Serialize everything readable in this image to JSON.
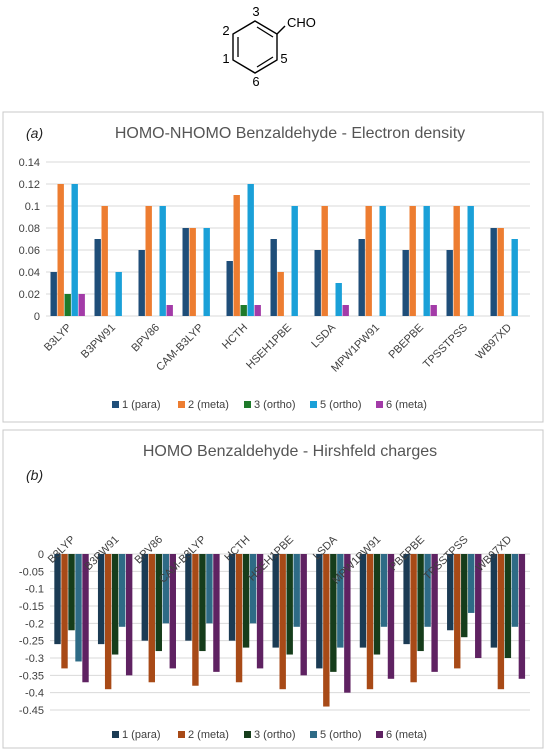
{
  "molecule": {
    "labels": {
      "pos3": "3",
      "pos2": "2",
      "pos1": "1",
      "pos5": "5",
      "pos6": "6",
      "cho": "CHO"
    }
  },
  "colors": {
    "s1": "#1f4e79",
    "s2": "#ed7d31",
    "s3": "#1e7a2a",
    "s5": "#1aa0d8",
    "s6": "#a33ba8",
    "b_s1": "#1b3b54",
    "b_s2": "#a84a17",
    "b_s3": "#163d1b",
    "b_s5": "#2e6b86",
    "b_s6": "#5f2262"
  },
  "chart_data": [
    {
      "type": "bar",
      "panel": "(a)",
      "title": "HOMO-NHOMO Benzaldehyde - Electron density",
      "categories": [
        "B3LYP",
        "B3PW91",
        "BPV86",
        "CAM-B3LYP",
        "HCTH",
        "HSEH1PBE",
        "LSDA",
        "MPW1PW91",
        "PBEPBE",
        "TPSSTPSS",
        "WB97XD"
      ],
      "ylim": [
        0,
        0.14
      ],
      "yticks": [
        "0",
        "0.02",
        "0.04",
        "0.06",
        "0.08",
        "0.1",
        "0.12",
        "0.14"
      ],
      "grid": true,
      "legend_position": "bottom",
      "series": [
        {
          "name": "1 (para)",
          "values": [
            0.04,
            0.07,
            0.06,
            0.08,
            0.05,
            0.07,
            0.06,
            0.07,
            0.06,
            0.06,
            0.08
          ]
        },
        {
          "name": "2 (meta)",
          "values": [
            0.12,
            0.1,
            0.1,
            0.08,
            0.11,
            0.04,
            0.1,
            0.1,
            0.1,
            0.1,
            0.08
          ]
        },
        {
          "name": "3 (ortho)",
          "values": [
            0.02,
            0,
            0,
            0,
            0.01,
            0,
            0,
            0,
            0,
            0,
            0
          ]
        },
        {
          "name": "5 (ortho)",
          "values": [
            0.12,
            0.04,
            0.1,
            0.08,
            0.12,
            0.1,
            0.03,
            0.1,
            0.1,
            0.1,
            0.07
          ]
        },
        {
          "name": "6 (meta)",
          "values": [
            0.02,
            0,
            0.01,
            0,
            0.01,
            0,
            0.01,
            0,
            0.01,
            0,
            0
          ]
        }
      ]
    },
    {
      "type": "bar",
      "panel": "(b)",
      "title": "HOMO Benzaldehyde - Hirshfeld charges",
      "categories": [
        "B3LYP",
        "B3PW91",
        "BPV86",
        "CAM-B3LYP",
        "HCTH",
        "HSEH1PBE",
        "LSDA",
        "MPW1PW91",
        "PBEPBE",
        "TPSSTPSS",
        "WB97XD"
      ],
      "ylim": [
        -0.45,
        0
      ],
      "yticks": [
        "0",
        "-0.05",
        "-0.1",
        "-0.15",
        "-0.2",
        "-0.25",
        "-0.3",
        "-0.35",
        "-0.4",
        "-0.45"
      ],
      "grid": true,
      "legend_position": "bottom",
      "series": [
        {
          "name": "1 (para)",
          "values": [
            -0.26,
            -0.26,
            -0.25,
            -0.25,
            -0.25,
            -0.27,
            -0.33,
            -0.27,
            -0.26,
            -0.22,
            -0.27
          ]
        },
        {
          "name": "2 (meta)",
          "values": [
            -0.33,
            -0.39,
            -0.37,
            -0.38,
            -0.37,
            -0.39,
            -0.44,
            -0.39,
            -0.37,
            -0.33,
            -0.39
          ]
        },
        {
          "name": "3 (ortho)",
          "values": [
            -0.22,
            -0.29,
            -0.28,
            -0.28,
            -0.27,
            -0.29,
            -0.34,
            -0.29,
            -0.28,
            -0.24,
            -0.3
          ]
        },
        {
          "name": "5 (ortho)",
          "values": [
            -0.31,
            -0.21,
            -0.2,
            -0.2,
            -0.2,
            -0.21,
            -0.27,
            -0.21,
            -0.21,
            -0.17,
            -0.21
          ]
        },
        {
          "name": "6 (meta)",
          "values": [
            -0.37,
            -0.35,
            -0.33,
            -0.34,
            -0.33,
            -0.35,
            -0.4,
            -0.36,
            -0.34,
            -0.3,
            -0.36
          ]
        }
      ]
    }
  ]
}
